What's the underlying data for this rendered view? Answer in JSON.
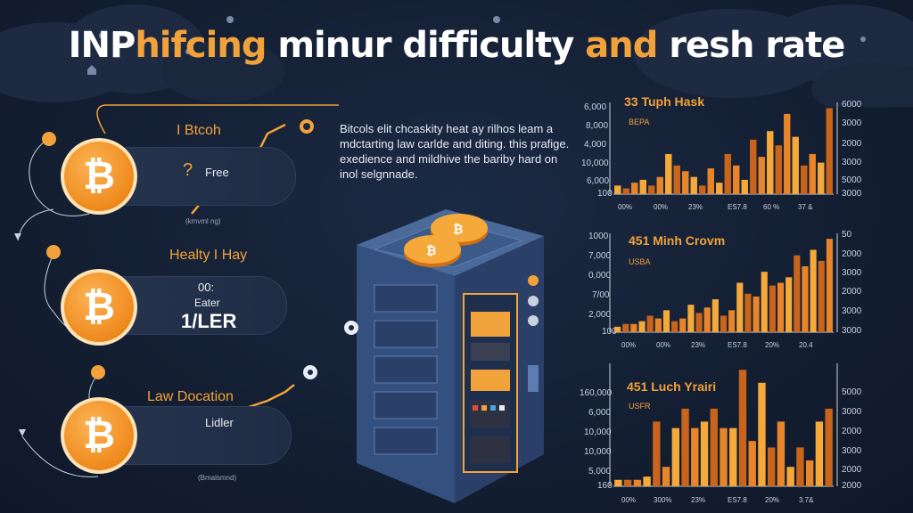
{
  "title": {
    "part1": "INP",
    "part2": "hifcing",
    "part3": " minur difficulty ",
    "part4": "and",
    "part5": " resh rate"
  },
  "left": {
    "cards": [
      {
        "label": "I Btcoh",
        "icon_text": "?",
        "text": "Free",
        "small": "(kmvml ng)"
      },
      {
        "label": "Healty I Hay",
        "line1": "00:",
        "line2": "Eater",
        "line3": "1/LER"
      },
      {
        "label": "Law Docation",
        "text": "Lidler",
        "small": "(Bmalsmnd)"
      }
    ],
    "coin_symbol": "₿"
  },
  "description": [
    "Bitcols elit chcaskity heat ay rilhos leam a",
    "mdctarting law carlde and diting. this prafige.",
    "exedience and mildhive the bariby hard on",
    "inol selgnnade."
  ],
  "charts": [
    {
      "title": "33 Tuph Hask",
      "subtitle": "BEPA",
      "yleft": [
        "6,000",
        "8,000",
        "4,000",
        "10,000",
        "6,000",
        "100"
      ],
      "yright": [
        "6000",
        "3000",
        "2000",
        "3000",
        "5000",
        "3000"
      ],
      "xticks": [
        "00%",
        "00%",
        "23%",
        "ES7.8",
        "60 %",
        "37 &"
      ],
      "chart_data": {
        "type": "bar",
        "values": [
          3,
          2,
          4,
          5,
          3,
          6,
          14,
          10,
          8,
          6,
          3,
          9,
          4,
          14,
          10,
          5,
          19,
          13,
          22,
          17,
          28,
          20,
          10,
          14,
          11,
          30
        ],
        "ylim": [
          0,
          32
        ]
      }
    },
    {
      "title": "451 Minh Crovm",
      "subtitle": "USBA",
      "yleft": [
        "1000",
        "7,000",
        "0,000",
        "7/00",
        "2,000",
        "100"
      ],
      "yright": [
        "50",
        "2000",
        "3000",
        "2000",
        "3000",
        "3000"
      ],
      "xticks": [
        "00%",
        "00%",
        "23%",
        "ES7.8",
        "20%",
        "20.4"
      ],
      "chart_data": {
        "type": "bar",
        "values": [
          2,
          3,
          3,
          4,
          6,
          5,
          8,
          4,
          5,
          10,
          7,
          9,
          12,
          6,
          8,
          18,
          14,
          13,
          22,
          17,
          18,
          20,
          28,
          24,
          30,
          26,
          34
        ],
        "ylim": [
          0,
          36
        ]
      }
    },
    {
      "title": "451 Luch Yrairi",
      "subtitle": "USFR",
      "yleft": [
        "160,000",
        "6,000",
        "10,000",
        "10,000",
        "5,000",
        "160"
      ],
      "yright": [
        "5000",
        "3000",
        "2000",
        "3000",
        "2000",
        "2000"
      ],
      "xticks": [
        "00%",
        "300%",
        "23%",
        "ES7.8",
        "20%",
        "3.7&"
      ],
      "chart_data": {
        "type": "bar",
        "values": [
          2,
          2,
          2,
          3,
          20,
          6,
          18,
          24,
          18,
          20,
          24,
          18,
          18,
          36,
          14,
          32,
          12,
          20,
          6,
          12,
          8,
          20,
          24
        ],
        "ylim": [
          0,
          38
        ]
      }
    }
  ],
  "colors": {
    "accent": "#f2a23a",
    "bar_dark": "#c8641b",
    "bar_light": "#f6a93b",
    "bg": "#141f33"
  }
}
